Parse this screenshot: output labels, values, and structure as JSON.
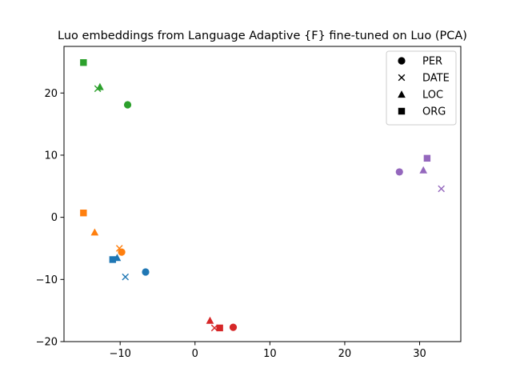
{
  "chart_data": {
    "type": "scatter",
    "title": "Luo embeddings from Language Adaptive {F} fine-tuned on Luo (PCA)",
    "xlabel": "",
    "ylabel": "",
    "xlim": [
      -17.5,
      35.5
    ],
    "ylim": [
      -20,
      27.5
    ],
    "xticks": [
      -10,
      0,
      10,
      20,
      30
    ],
    "yticks": [
      -20,
      -10,
      0,
      10,
      20
    ],
    "xtick_labels": [
      "−10",
      "0",
      "10",
      "20",
      "30"
    ],
    "ytick_labels": [
      "−20",
      "−10",
      "0",
      "10",
      "20"
    ],
    "grid": false,
    "legend": {
      "placement": "top-right",
      "entries": [
        {
          "label": "PER",
          "marker": "circle"
        },
        {
          "label": "DATE",
          "marker": "x"
        },
        {
          "label": "LOC",
          "marker": "triangle"
        },
        {
          "label": "ORG",
          "marker": "square"
        }
      ]
    },
    "points": [
      {
        "group": "green",
        "color": "#2ca02c",
        "marker": "square",
        "x": -14.9,
        "y": 24.9
      },
      {
        "group": "green",
        "color": "#2ca02c",
        "marker": "x",
        "x": -13.0,
        "y": 20.7
      },
      {
        "group": "green",
        "color": "#2ca02c",
        "marker": "triangle",
        "x": -12.7,
        "y": 21.0
      },
      {
        "group": "green",
        "color": "#2ca02c",
        "marker": "circle",
        "x": -9.0,
        "y": 18.1
      },
      {
        "group": "orange",
        "color": "#ff7f0e",
        "marker": "square",
        "x": -14.9,
        "y": 0.7
      },
      {
        "group": "orange",
        "color": "#ff7f0e",
        "marker": "triangle",
        "x": -13.4,
        "y": -2.4
      },
      {
        "group": "orange",
        "color": "#ff7f0e",
        "marker": "x",
        "x": -10.1,
        "y": -5.0
      },
      {
        "group": "orange",
        "color": "#ff7f0e",
        "marker": "circle",
        "x": -9.8,
        "y": -5.6
      },
      {
        "group": "blue",
        "color": "#1f77b4",
        "marker": "square",
        "x": -11.0,
        "y": -6.8
      },
      {
        "group": "blue",
        "color": "#1f77b4",
        "marker": "triangle",
        "x": -10.4,
        "y": -6.5
      },
      {
        "group": "blue",
        "color": "#1f77b4",
        "marker": "x",
        "x": -9.3,
        "y": -9.6
      },
      {
        "group": "blue",
        "color": "#1f77b4",
        "marker": "circle",
        "x": -6.6,
        "y": -8.8
      },
      {
        "group": "red",
        "color": "#d62728",
        "marker": "triangle",
        "x": 2.0,
        "y": -16.6
      },
      {
        "group": "red",
        "color": "#d62728",
        "marker": "x",
        "x": 2.6,
        "y": -17.8
      },
      {
        "group": "red",
        "color": "#d62728",
        "marker": "square",
        "x": 3.3,
        "y": -17.8
      },
      {
        "group": "red",
        "color": "#d62728",
        "marker": "circle",
        "x": 5.1,
        "y": -17.7
      },
      {
        "group": "purple",
        "color": "#9467bd",
        "marker": "circle",
        "x": 27.3,
        "y": 7.3
      },
      {
        "group": "purple",
        "color": "#9467bd",
        "marker": "triangle",
        "x": 30.5,
        "y": 7.6
      },
      {
        "group": "purple",
        "color": "#9467bd",
        "marker": "square",
        "x": 31.0,
        "y": 9.5
      },
      {
        "group": "purple",
        "color": "#9467bd",
        "marker": "x",
        "x": 32.9,
        "y": 4.6
      }
    ]
  }
}
